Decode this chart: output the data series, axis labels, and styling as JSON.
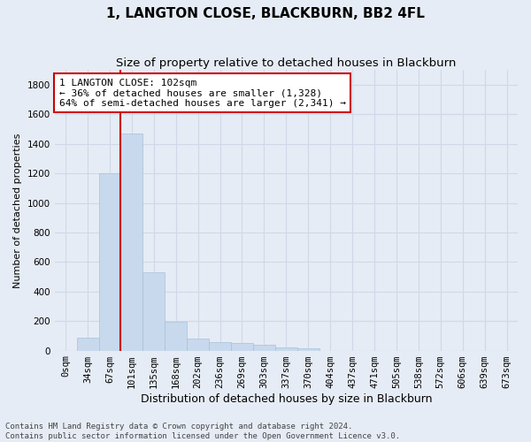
{
  "title": "1, LANGTON CLOSE, BLACKBURN, BB2 4FL",
  "subtitle": "Size of property relative to detached houses in Blackburn",
  "xlabel": "Distribution of detached houses by size in Blackburn",
  "ylabel": "Number of detached properties",
  "bar_color": "#c8d9ed",
  "bar_edge_color": "#a8c0d8",
  "background_color": "#e6ecf5",
  "grid_color": "#d0d8e8",
  "bin_labels": [
    "0sqm",
    "34sqm",
    "67sqm",
    "101sqm",
    "135sqm",
    "168sqm",
    "202sqm",
    "236sqm",
    "269sqm",
    "303sqm",
    "337sqm",
    "370sqm",
    "404sqm",
    "437sqm",
    "471sqm",
    "505sqm",
    "538sqm",
    "572sqm",
    "606sqm",
    "639sqm",
    "673sqm"
  ],
  "bar_heights": [
    0,
    90,
    1200,
    1470,
    530,
    195,
    80,
    60,
    50,
    40,
    20,
    15,
    0,
    0,
    0,
    0,
    0,
    0,
    0,
    0,
    0
  ],
  "ylim": [
    0,
    1900
  ],
  "yticks": [
    0,
    200,
    400,
    600,
    800,
    1000,
    1200,
    1400,
    1600,
    1800
  ],
  "vline_x_index": 2.5,
  "annotation_text": "1 LANGTON CLOSE: 102sqm\n← 36% of detached houses are smaller (1,328)\n64% of semi-detached houses are larger (2,341) →",
  "annotation_box_color": "#ffffff",
  "annotation_border_color": "#cc0000",
  "vline_color": "#cc0000",
  "footer_text": "Contains HM Land Registry data © Crown copyright and database right 2024.\nContains public sector information licensed under the Open Government Licence v3.0.",
  "title_fontsize": 11,
  "subtitle_fontsize": 9.5,
  "xlabel_fontsize": 9,
  "ylabel_fontsize": 8,
  "tick_fontsize": 7.5,
  "annotation_fontsize": 8,
  "footer_fontsize": 6.5
}
